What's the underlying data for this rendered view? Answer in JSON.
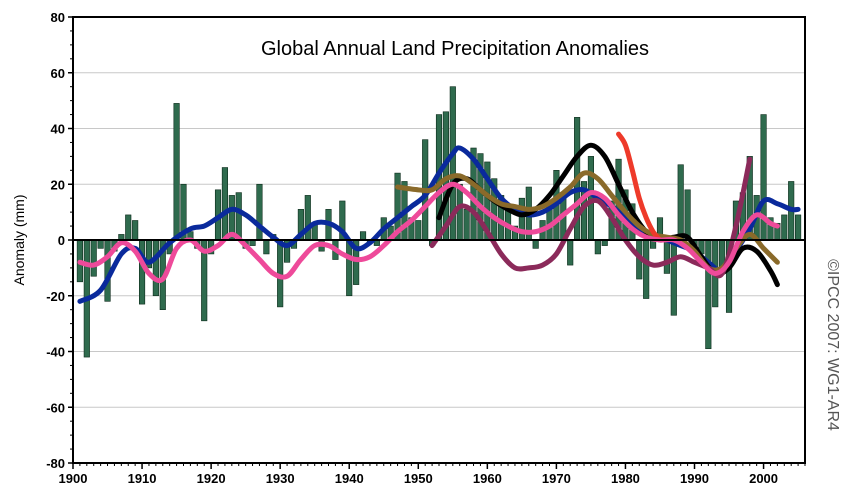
{
  "chart_data": {
    "type": "bar",
    "title": "Global Annual Land Precipitation Anomalies",
    "xlabel": "",
    "ylabel": "Anomaly (mm)",
    "xlim": [
      1900,
      2006
    ],
    "ylim": [
      -80,
      80
    ],
    "x_ticks": [
      1900,
      1910,
      1920,
      1930,
      1940,
      1950,
      1960,
      1970,
      1980,
      1990,
      2000
    ],
    "y_ticks": [
      -80,
      -60,
      -40,
      -20,
      0,
      20,
      40,
      60,
      80
    ],
    "grid": true,
    "credit": "©IPCC 2007: WG1-AR4",
    "bars": {
      "color": "#2f6b4e",
      "x": [
        1901,
        1902,
        1903,
        1904,
        1905,
        1906,
        1907,
        1908,
        1909,
        1910,
        1911,
        1912,
        1913,
        1914,
        1915,
        1916,
        1917,
        1918,
        1919,
        1920,
        1921,
        1922,
        1923,
        1924,
        1925,
        1926,
        1927,
        1928,
        1929,
        1930,
        1931,
        1932,
        1933,
        1934,
        1935,
        1936,
        1937,
        1938,
        1939,
        1940,
        1941,
        1942,
        1943,
        1944,
        1945,
        1946,
        1947,
        1948,
        1949,
        1950,
        1951,
        1952,
        1953,
        1954,
        1955,
        1956,
        1957,
        1958,
        1959,
        1960,
        1961,
        1962,
        1963,
        1964,
        1965,
        1966,
        1967,
        1968,
        1969,
        1970,
        1971,
        1972,
        1973,
        1974,
        1975,
        1976,
        1977,
        1978,
        1979,
        1980,
        1981,
        1982,
        1983,
        1984,
        1985,
        1986,
        1987,
        1988,
        1989,
        1990,
        1991,
        1992,
        1993,
        1994,
        1995,
        1996,
        1997,
        1998,
        1999,
        2000,
        2001,
        2002,
        2003,
        2004,
        2005
      ],
      "values": [
        -15,
        -42,
        -13,
        -3,
        -22,
        -4,
        2,
        9,
        7,
        -23,
        -10,
        -20,
        -25,
        -5,
        49,
        20,
        3,
        -3,
        -29,
        -5,
        18,
        26,
        16,
        17,
        -3,
        -2,
        20,
        -5,
        2,
        -24,
        -8,
        -3,
        11,
        16,
        6,
        -4,
        11,
        -7,
        14,
        -20,
        -16,
        3,
        -1,
        -2,
        8,
        5,
        24,
        21,
        8,
        7,
        36,
        -2,
        45,
        46,
        55,
        20,
        11,
        33,
        31,
        28,
        22,
        16,
        12,
        5,
        15,
        19,
        -3,
        7,
        14,
        25,
        17,
        -9,
        44,
        21,
        30,
        -5,
        -2,
        14,
        29,
        18,
        13,
        -14,
        -21,
        -3,
        8,
        -12,
        -27,
        27,
        18,
        -3,
        -5,
        -39,
        -24,
        -12,
        -26,
        14,
        17,
        30,
        16,
        45,
        8,
        6,
        9,
        21,
        9
      ]
    },
    "series": [
      {
        "color": "#0a2a9c",
        "x": [
          1901,
          1904,
          1907,
          1909,
          1911,
          1914,
          1917,
          1919,
          1921,
          1923,
          1925,
          1927,
          1929,
          1931,
          1933,
          1935,
          1937,
          1939,
          1941,
          1943,
          1945,
          1947,
          1949,
          1951,
          1953,
          1955,
          1956,
          1958,
          1960,
          1962,
          1964,
          1966,
          1968,
          1970,
          1972,
          1974,
          1976,
          1978,
          1980,
          1982,
          1984,
          1986,
          1988,
          1990,
          1992,
          1994,
          1996,
          1998,
          2000,
          2002,
          2004,
          2005
        ],
        "y": [
          -22,
          -18,
          -5,
          -3,
          -8,
          -1,
          4,
          5,
          8,
          11,
          9,
          5,
          1,
          -2,
          2,
          6,
          6,
          3,
          -3,
          -1,
          4,
          8,
          12,
          16,
          24,
          31,
          33,
          29,
          22,
          15,
          11,
          9,
          10,
          13,
          17,
          18,
          15,
          12,
          8,
          4,
          2,
          0,
          -2,
          -4,
          -8,
          -11,
          -4,
          4,
          14,
          13,
          11,
          11
        ]
      },
      {
        "color": "#000000",
        "x": [
          1953,
          1955,
          1957,
          1959,
          1961,
          1963,
          1965,
          1967,
          1969,
          1971,
          1973,
          1975,
          1977,
          1979,
          1981,
          1983,
          1985,
          1987,
          1989,
          1991,
          1993,
          1995,
          1997,
          1999,
          2001,
          2002
        ],
        "y": [
          8,
          20,
          22,
          18,
          14,
          11,
          9,
          11,
          16,
          23,
          30,
          34,
          30,
          20,
          10,
          3,
          0,
          1,
          1,
          -6,
          -12,
          -10,
          -3,
          -4,
          -11,
          -16
        ]
      },
      {
        "color": "#8a6a2a",
        "x": [
          1947,
          1950,
          1952,
          1954,
          1956,
          1958,
          1960,
          1962,
          1964,
          1966,
          1968,
          1970,
          1972,
          1974,
          1976,
          1978,
          1980,
          1982,
          1984,
          1986,
          1988,
          1990,
          1992,
          1994,
          1996,
          1998,
          2000,
          2002
        ],
        "y": [
          19,
          18,
          18,
          22,
          23,
          20,
          16,
          13,
          12,
          11,
          12,
          15,
          19,
          24,
          22,
          16,
          10,
          5,
          2,
          1,
          0,
          -4,
          -10,
          -10,
          -3,
          2,
          -3,
          -8
        ]
      },
      {
        "color": "#8b2a5a",
        "x": [
          1952,
          1954,
          1956,
          1958,
          1960,
          1962,
          1964,
          1966,
          1968,
          1970,
          1972,
          1974,
          1976,
          1978,
          1980,
          1982,
          1984,
          1986,
          1988,
          1990,
          1992,
          1994,
          1996,
          1998
        ],
        "y": [
          -2,
          5,
          12,
          10,
          3,
          -5,
          -10,
          -10,
          -9,
          -5,
          4,
          12,
          14,
          8,
          0,
          -6,
          -9,
          -8,
          -6,
          -8,
          -10,
          -12,
          5,
          29
        ]
      },
      {
        "color": "#ee3a2a",
        "x": [
          1979,
          1980,
          1981,
          1982,
          1983,
          1984,
          1985
        ],
        "y": [
          38,
          34,
          25,
          15,
          8,
          3,
          0
        ]
      },
      {
        "color": "#ee4a9a",
        "x": [
          1901,
          1903,
          1905,
          1907,
          1909,
          1911,
          1913,
          1915,
          1917,
          1919,
          1921,
          1923,
          1925,
          1927,
          1929,
          1931,
          1933,
          1935,
          1937,
          1939,
          1941,
          1943,
          1945,
          1947,
          1949,
          1951,
          1953,
          1955,
          1957,
          1959,
          1961,
          1963,
          1965,
          1967,
          1969,
          1971,
          1973,
          1975,
          1977,
          1979,
          1981,
          1983,
          1985,
          1987,
          1989,
          1991,
          1993,
          1995,
          1997,
          1999,
          2001,
          2002
        ],
        "y": [
          -8,
          -9,
          -6,
          -1,
          -4,
          -12,
          -14,
          -3,
          0,
          -4,
          -2,
          2,
          -2,
          -7,
          -12,
          -13,
          -7,
          -2,
          -2,
          -5,
          -7,
          -6,
          -2,
          3,
          7,
          12,
          17,
          20,
          17,
          12,
          8,
          5,
          3,
          3,
          5,
          9,
          13,
          17,
          15,
          9,
          4,
          1,
          0,
          0,
          -3,
          -8,
          -12,
          -8,
          3,
          9,
          6,
          5
        ]
      }
    ]
  }
}
